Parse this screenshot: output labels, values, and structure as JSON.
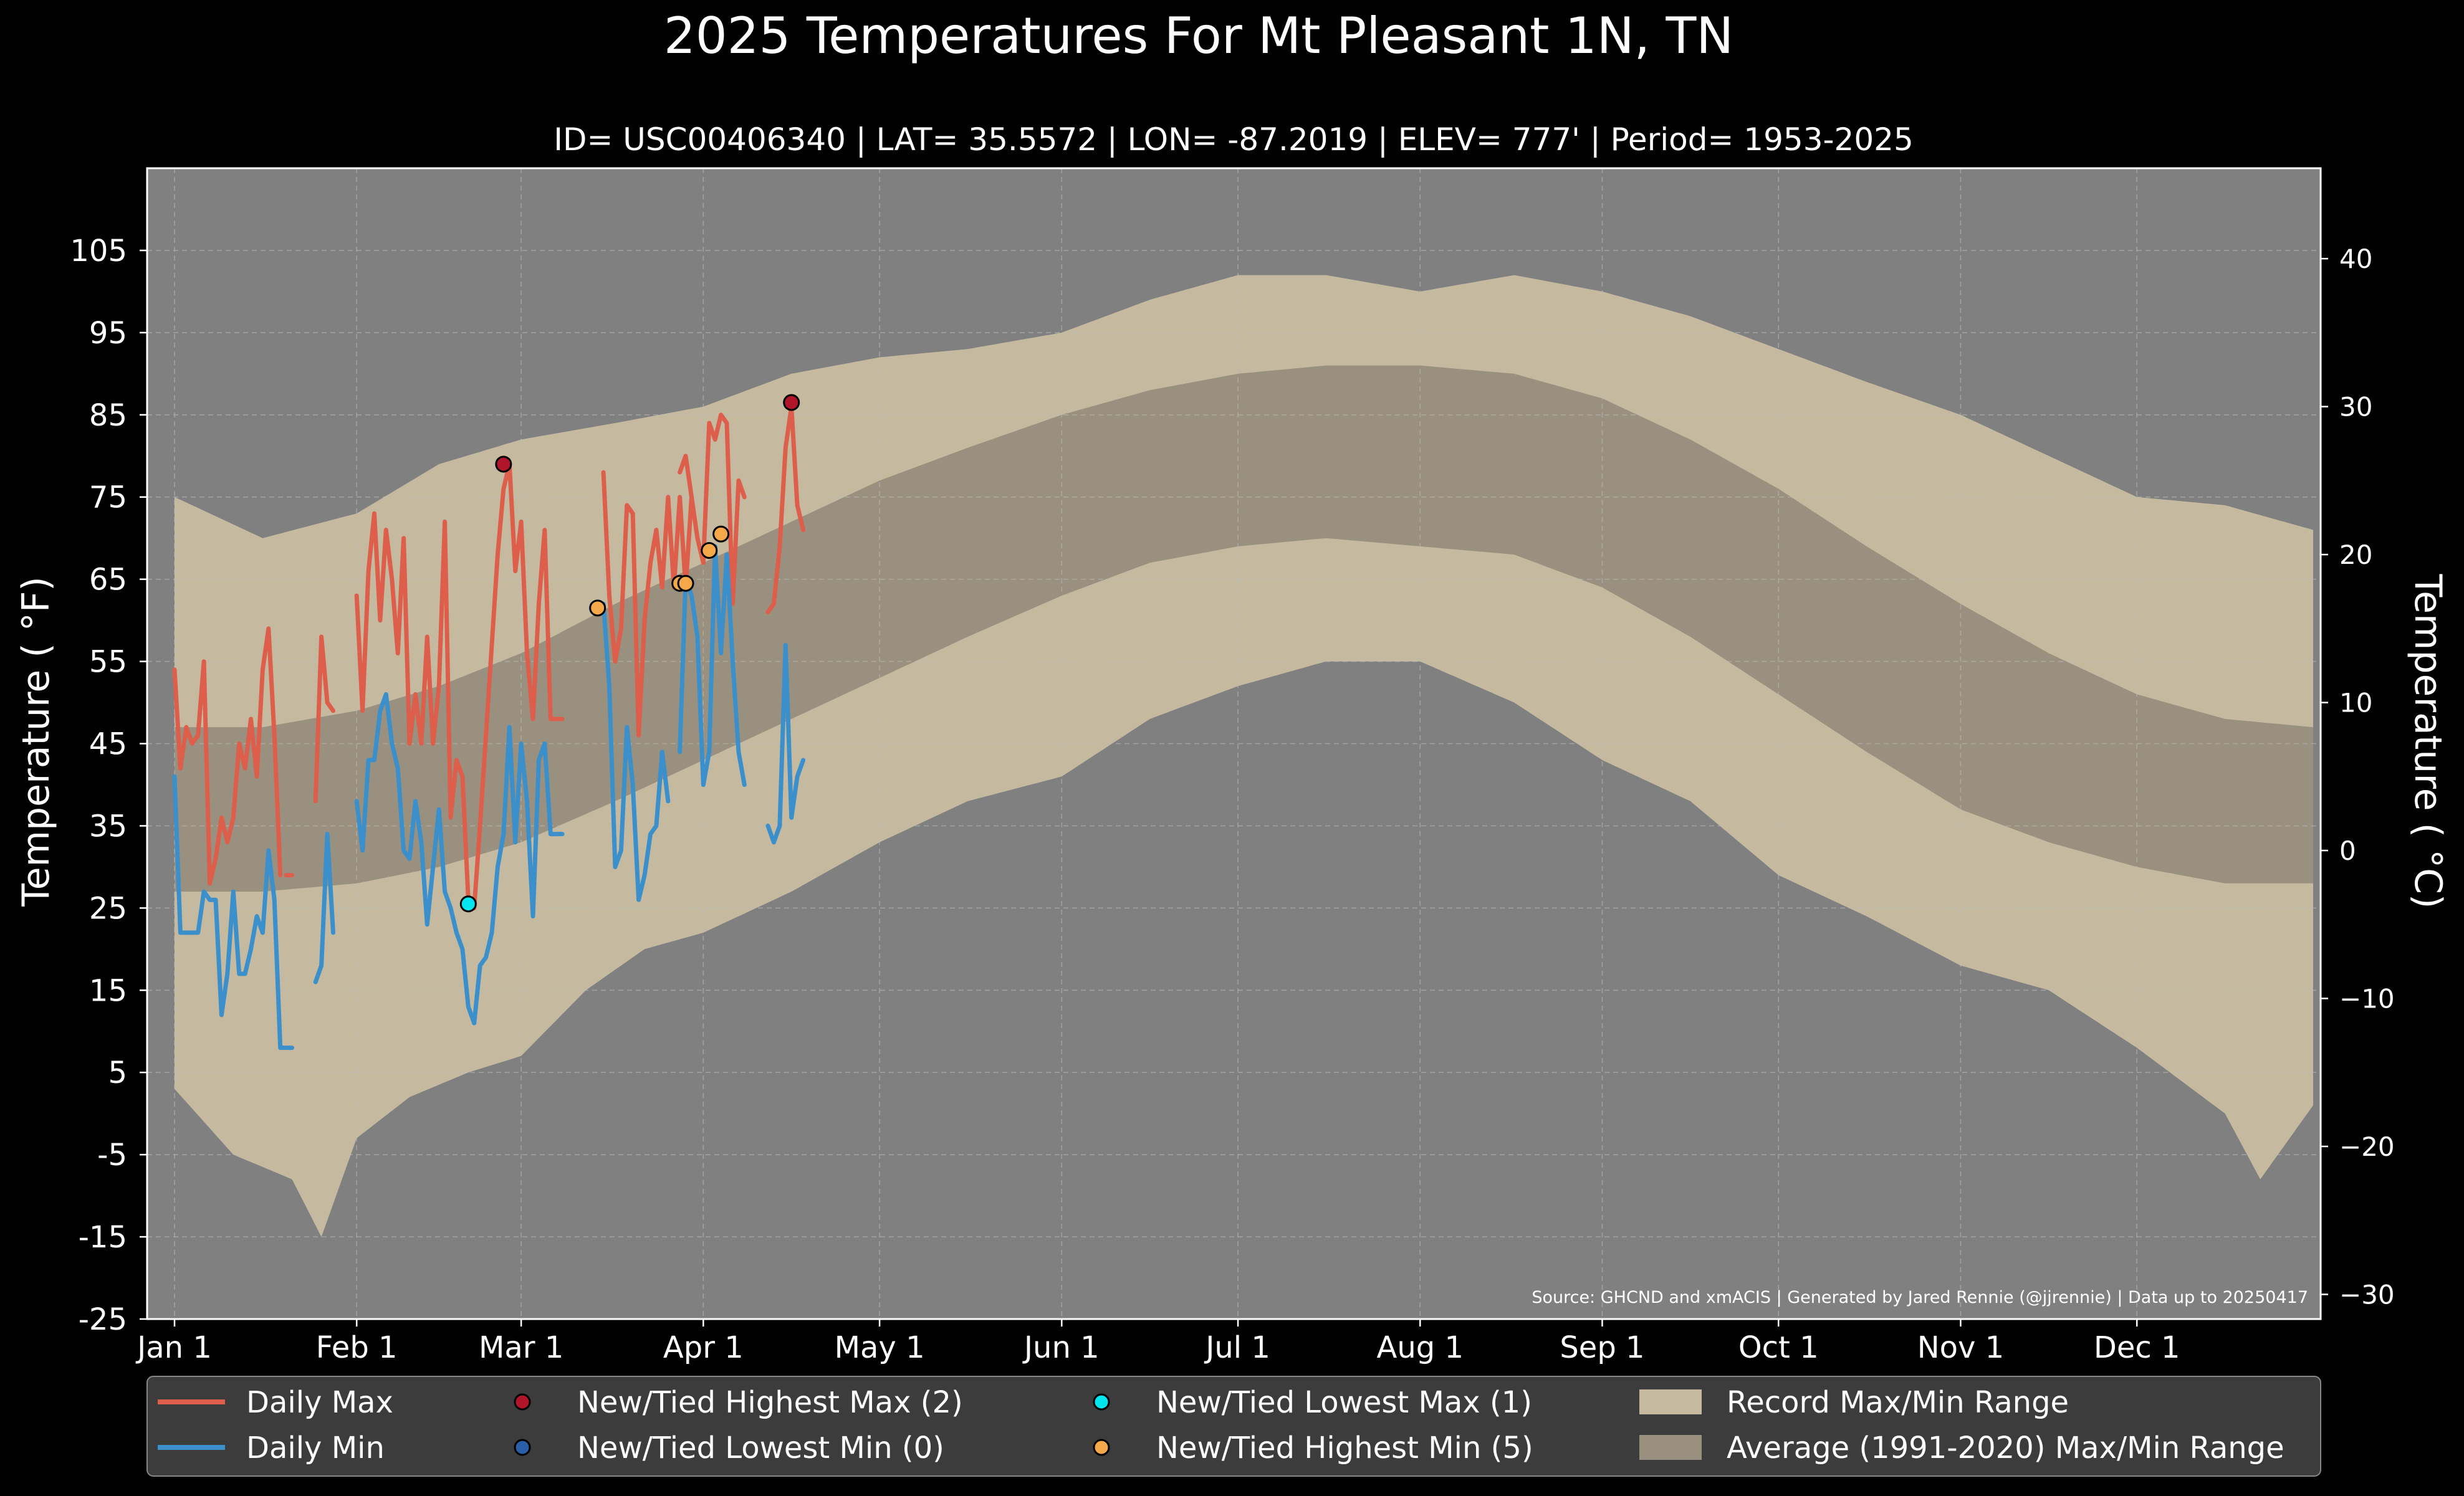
{
  "chart_data": {
    "type": "line",
    "title": "2025 Temperatures For Mt Pleasant 1N, TN",
    "subtitle": "ID= USC00406340 | LAT= 35.5572 | LON= -87.2019 | ELEV= 777' | Period= 1953-2025",
    "ylabel": "Temperature ( °F)",
    "ylabel_right": "Temperature ( °C)",
    "source": "Source: GHCND and xmACIS | Generated by Jared Rennie (@jjrennie) | Data up to 20250417",
    "ylim": [
      -25,
      115
    ],
    "ylim_right_c": [
      -31.67,
      46.11
    ],
    "xlim_day": [
      0,
      364
    ],
    "grid": true,
    "legend_position": "bottom",
    "y_ticks": [
      "105",
      "95",
      "85",
      "75",
      "65",
      "55",
      "45",
      "35",
      "25",
      "15",
      "5",
      "-5",
      "-15",
      "-25"
    ],
    "y_tick_values": [
      105,
      95,
      85,
      75,
      65,
      55,
      45,
      35,
      25,
      15,
      5,
      -5,
      -15,
      -25
    ],
    "y_ticks_right": [
      "40",
      "30",
      "20",
      "10",
      "0",
      "−10",
      "−20",
      "−30"
    ],
    "y_tick_values_right": [
      40,
      30,
      20,
      10,
      0,
      -10,
      -20,
      -30
    ],
    "x_ticks": [
      "Jan 1",
      "Feb 1",
      "Mar 1",
      "Apr 1",
      "May 1",
      "Jun 1",
      "Jul 1",
      "Aug 1",
      "Sep 1",
      "Oct 1",
      "Nov 1",
      "Dec 1"
    ],
    "x_tick_days": [
      0,
      31,
      59,
      90,
      120,
      151,
      181,
      212,
      243,
      273,
      304,
      334
    ],
    "record_max": {
      "days": [
        0,
        15,
        31,
        45,
        59,
        75,
        90,
        105,
        120,
        135,
        151,
        166,
        181,
        196,
        212,
        228,
        243,
        258,
        273,
        288,
        304,
        319,
        334,
        349,
        364
      ],
      "values": [
        75,
        70,
        73,
        79,
        82,
        84,
        86,
        90,
        92,
        93,
        95,
        99,
        102,
        102,
        100,
        102,
        100,
        97,
        93,
        89,
        85,
        80,
        75,
        74,
        71
      ]
    },
    "record_min": {
      "days": [
        0,
        10,
        20,
        25,
        31,
        40,
        50,
        59,
        70,
        80,
        90,
        105,
        120,
        135,
        151,
        166,
        181,
        196,
        212,
        228,
        243,
        258,
        273,
        288,
        304,
        319,
        334,
        349,
        355,
        364
      ],
      "values": [
        3,
        -5,
        -8,
        -15,
        -3,
        2,
        5,
        7,
        15,
        20,
        22,
        27,
        33,
        38,
        41,
        48,
        52,
        55,
        55,
        50,
        43,
        38,
        29,
        24,
        18,
        15,
        8,
        0,
        -8,
        1
      ]
    },
    "normal_max": {
      "days": [
        0,
        15,
        31,
        45,
        59,
        75,
        90,
        105,
        120,
        135,
        151,
        166,
        181,
        196,
        212,
        228,
        243,
        258,
        273,
        288,
        304,
        319,
        334,
        349,
        364
      ],
      "values": [
        47,
        47,
        49,
        52,
        56,
        62,
        67,
        72,
        77,
        81,
        85,
        88,
        90,
        91,
        91,
        90,
        87,
        82,
        76,
        69,
        62,
        56,
        51,
        48,
        47
      ]
    },
    "normal_min": {
      "days": [
        0,
        15,
        31,
        45,
        59,
        75,
        90,
        105,
        120,
        135,
        151,
        166,
        181,
        196,
        212,
        228,
        243,
        258,
        273,
        288,
        304,
        319,
        334,
        349,
        364
      ],
      "values": [
        27,
        27,
        28,
        30,
        33,
        38,
        43,
        48,
        53,
        58,
        63,
        67,
        69,
        70,
        69,
        68,
        64,
        58,
        51,
        44,
        37,
        33,
        30,
        28,
        28
      ]
    },
    "series": [
      {
        "name": "Daily Max",
        "color": "#dd5f4b",
        "segments": [
          {
            "days": [
              0,
              1,
              2,
              3,
              4,
              5,
              6,
              7,
              8,
              9,
              10,
              11,
              12,
              13,
              14,
              15,
              16,
              17,
              18
            ],
            "values": [
              54,
              42,
              47,
              45,
              46,
              55,
              28,
              31,
              36,
              33,
              36,
              45,
              42,
              48,
              41,
              54,
              59,
              46,
              29
            ]
          },
          {
            "days": [
              19,
              20
            ],
            "values": [
              29,
              29
            ]
          },
          {
            "days": [
              24,
              25,
              26,
              27
            ],
            "values": [
              38,
              58,
              50,
              49
            ]
          },
          {
            "days": [
              31,
              32,
              33,
              34,
              35,
              36,
              37,
              38,
              39,
              40,
              41,
              42,
              43,
              44,
              45,
              46,
              47,
              48,
              49,
              50,
              51,
              52,
              53,
              54,
              55,
              56,
              57,
              58,
              59,
              60,
              61,
              62,
              63,
              64,
              65,
              66
            ],
            "values": [
              63,
              49,
              66,
              73,
              60,
              71,
              65,
              56,
              70,
              45,
              51,
              45,
              58,
              45,
              52,
              72,
              36,
              43,
              41,
              26,
              25,
              35,
              46,
              57,
              68,
              76,
              79,
              66,
              72,
              56,
              48,
              62,
              71,
              48,
              48,
              48
            ]
          },
          {
            "days": [
              73,
              74,
              75,
              76,
              77,
              78,
              79,
              80,
              81,
              82,
              83,
              84,
              85,
              86,
              87,
              88
            ],
            "values": [
              78,
              63,
              55,
              59,
              74,
              73,
              46,
              60,
              67,
              71,
              64,
              75,
              64,
              75,
              64,
              75
            ]
          },
          {
            "days": [
              86,
              87,
              88,
              89,
              90,
              91,
              92,
              93,
              94,
              95,
              96,
              97
            ],
            "values": [
              78,
              80,
              75,
              70,
              67,
              84,
              82,
              85,
              84,
              62,
              77,
              75
            ]
          },
          {
            "days": [
              101,
              102,
              103,
              104,
              105,
              106,
              107
            ],
            "values": [
              61,
              62,
              69,
              81,
              86,
              74,
              71
            ]
          }
        ]
      },
      {
        "name": "Daily Min",
        "color": "#3b8fcb",
        "segments": [
          {
            "days": [
              0,
              1,
              2,
              3,
              4,
              5,
              6,
              7,
              8,
              9,
              10,
              11,
              12,
              13,
              14,
              15,
              16,
              17,
              18,
              19,
              20
            ],
            "values": [
              41,
              22,
              22,
              22,
              22,
              27,
              26,
              26,
              12,
              17,
              27,
              17,
              17,
              20,
              24,
              22,
              32,
              26,
              8,
              8,
              8
            ]
          },
          {
            "days": [
              24,
              25,
              26,
              27
            ],
            "values": [
              16,
              18,
              34,
              22
            ]
          },
          {
            "days": [
              31,
              32,
              33,
              34,
              35,
              36,
              37,
              38,
              39,
              40,
              41,
              42,
              43,
              44,
              45,
              46,
              47,
              48,
              49,
              50,
              51,
              52,
              53,
              54,
              55,
              56,
              57,
              58,
              59,
              60,
              61,
              62,
              63,
              64,
              65,
              66
            ],
            "values": [
              38,
              32,
              43,
              43,
              49,
              51,
              45,
              42,
              32,
              31,
              38,
              33,
              23,
              30,
              37,
              27,
              25,
              22,
              20,
              13,
              11,
              18,
              19,
              22,
              30,
              34,
              47,
              33,
              45,
              38,
              24,
              43,
              45,
              34,
              34,
              34
            ]
          },
          {
            "days": [
              73,
              74,
              75,
              76,
              77,
              78,
              79,
              80,
              81,
              82,
              83,
              84
            ],
            "values": [
              62,
              52,
              30,
              32,
              47,
              40,
              26,
              29,
              34,
              35,
              44,
              38
            ]
          },
          {
            "days": [
              86,
              87,
              88,
              89,
              90,
              91,
              92,
              93,
              94,
              95,
              96,
              97
            ],
            "values": [
              44,
              65,
              63,
              58,
              40,
              44,
              69,
              56,
              68,
              55,
              44,
              40
            ]
          },
          {
            "days": [
              101,
              102,
              103,
              104,
              105,
              106,
              107
            ],
            "values": [
              35,
              33,
              35,
              57,
              36,
              41,
              43
            ]
          }
        ]
      }
    ],
    "markers": [
      {
        "series": "New/Tied Highest Max",
        "day": 56,
        "value": 79
      },
      {
        "series": "New/Tied Highest Max",
        "day": 105,
        "value": 86.5
      },
      {
        "series": "New/Tied Lowest Max",
        "day": 50,
        "value": 25.5
      },
      {
        "series": "New/Tied Highest Min",
        "day": 72,
        "value": 61.5
      },
      {
        "series": "New/Tied Highest Min",
        "day": 86,
        "value": 64.5
      },
      {
        "series": "New/Tied Highest Min",
        "day": 87,
        "value": 64.5
      },
      {
        "series": "New/Tied Highest Min",
        "day": 91,
        "value": 68.5
      },
      {
        "series": "New/Tied Highest Min",
        "day": 93,
        "value": 70.5
      }
    ],
    "legend": [
      {
        "label": "Daily Max",
        "kind": "line",
        "color": "#dd5f4b"
      },
      {
        "label": "Daily Min",
        "kind": "line",
        "color": "#3b8fcb"
      },
      {
        "label": "New/Tied Highest Max (2)",
        "kind": "dot",
        "color": "#b0152a"
      },
      {
        "label": "New/Tied Lowest Min (0)",
        "kind": "dot",
        "color": "#2a5fa8"
      },
      {
        "label": "New/Tied Lowest Max (1)",
        "kind": "dot",
        "color": "#00e5ee"
      },
      {
        "label": "New/Tied Highest Min (5)",
        "kind": "dot",
        "color": "#f5a84a"
      },
      {
        "label": "Record Max/Min Range",
        "kind": "box",
        "color": "#c5baa0"
      },
      {
        "label": "Average (1991-2020) Max/Min Range",
        "kind": "box",
        "color": "#99907f"
      }
    ],
    "colors": {
      "background": "#000000",
      "plot_background": "#808080",
      "record_range": "#c5baa0",
      "normal_range": "#99907f",
      "legend_background": "#3c3c3c",
      "highest_max": "#b0152a",
      "lowest_max": "#00e5ee",
      "highest_min": "#f5a84a",
      "lowest_min": "#2a5fa8"
    }
  }
}
